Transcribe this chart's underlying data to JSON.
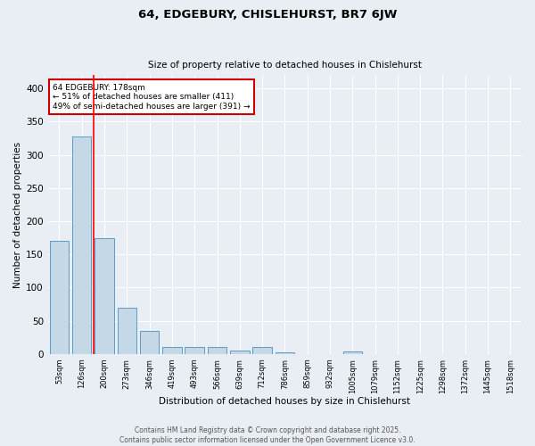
{
  "title1": "64, EDGEBURY, CHISLEHURST, BR7 6JW",
  "title2": "Size of property relative to detached houses in Chislehurst",
  "xlabel": "Distribution of detached houses by size in Chislehurst",
  "ylabel": "Number of detached properties",
  "bar_labels": [
    "53sqm",
    "126sqm",
    "200sqm",
    "273sqm",
    "346sqm",
    "419sqm",
    "493sqm",
    "566sqm",
    "639sqm",
    "712sqm",
    "786sqm",
    "859sqm",
    "932sqm",
    "1005sqm",
    "1079sqm",
    "1152sqm",
    "1225sqm",
    "1298sqm",
    "1372sqm",
    "1445sqm",
    "1518sqm"
  ],
  "bar_values": [
    170,
    328,
    175,
    70,
    35,
    10,
    10,
    10,
    5,
    10,
    2,
    0,
    0,
    4,
    0,
    0,
    0,
    0,
    0,
    0,
    0
  ],
  "bar_color": "#c5d8e8",
  "bar_edge_color": "#5a9cc5",
  "red_line_x": 1.52,
  "annotation_text": "64 EDGEBURY: 178sqm\n← 51% of detached houses are smaller (411)\n49% of semi-detached houses are larger (391) →",
  "annotation_box_color": "#ffffff",
  "annotation_box_edge": "#cc0000",
  "ylim": [
    0,
    420
  ],
  "yticks": [
    0,
    50,
    100,
    150,
    200,
    250,
    300,
    350,
    400
  ],
  "bg_color": "#e8eef4",
  "grid_color": "#ffffff",
  "footer1": "Contains HM Land Registry data © Crown copyright and database right 2025.",
  "footer2": "Contains public sector information licensed under the Open Government Licence v3.0."
}
